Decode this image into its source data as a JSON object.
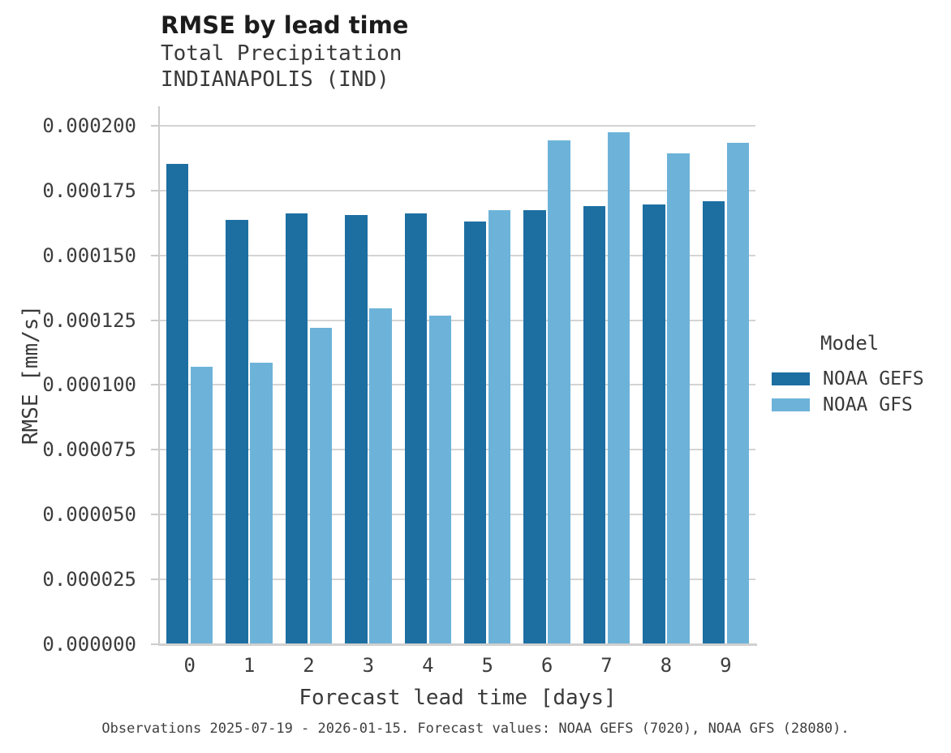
{
  "header": {
    "title": "RMSE by lead time",
    "subtitle_line1": "Total Precipitation",
    "subtitle_line2": "INDIANAPOLIS (IND)"
  },
  "chart_data": {
    "type": "bar",
    "title": "RMSE by lead time",
    "subtitle": [
      "Total Precipitation",
      "INDIANAPOLIS (IND)"
    ],
    "xlabel": "Forecast lead time [days]",
    "ylabel": "RMSE [mm/s]",
    "categories": [
      "0",
      "1",
      "2",
      "3",
      "4",
      "5",
      "6",
      "7",
      "8",
      "9"
    ],
    "series": [
      {
        "name": "NOAA GEFS",
        "color": "#1d6fa2",
        "values": [
          0.0001853,
          0.0001637,
          0.0001662,
          0.0001655,
          0.0001662,
          0.000163,
          0.0001674,
          0.000169,
          0.0001697,
          0.000171
        ]
      },
      {
        "name": "NOAA GFS",
        "color": "#6db3d9",
        "values": [
          0.0001071,
          0.0001086,
          0.0001222,
          0.0001297,
          0.0001268,
          0.0001675,
          0.0001943,
          0.0001975,
          0.0001893,
          0.0001935
        ]
      }
    ],
    "yticks": [
      0.0,
      2.5e-05,
      5e-05,
      7.5e-05,
      0.0001,
      0.000125,
      0.00015,
      0.000175,
      0.0002
    ],
    "ylim": [
      0,
      0.0002075
    ],
    "grid": "horizontal",
    "legend_title": "Model",
    "legend_position": "right"
  },
  "legend": {
    "title": "Model",
    "items": [
      {
        "label": "NOAA GEFS",
        "color": "#1d6fa2"
      },
      {
        "label": "NOAA GFS",
        "color": "#6db3d9"
      }
    ]
  },
  "caption": {
    "text": "Observations 2025-07-19 - 2026-01-15. Forecast values: NOAA GEFS (7020), NOAA GFS (28080)."
  },
  "colors": {
    "gridline": "#d4d4d4",
    "spine": "#cbcbcb",
    "baseline": "#d0d0d0",
    "background": "#ffffff"
  }
}
